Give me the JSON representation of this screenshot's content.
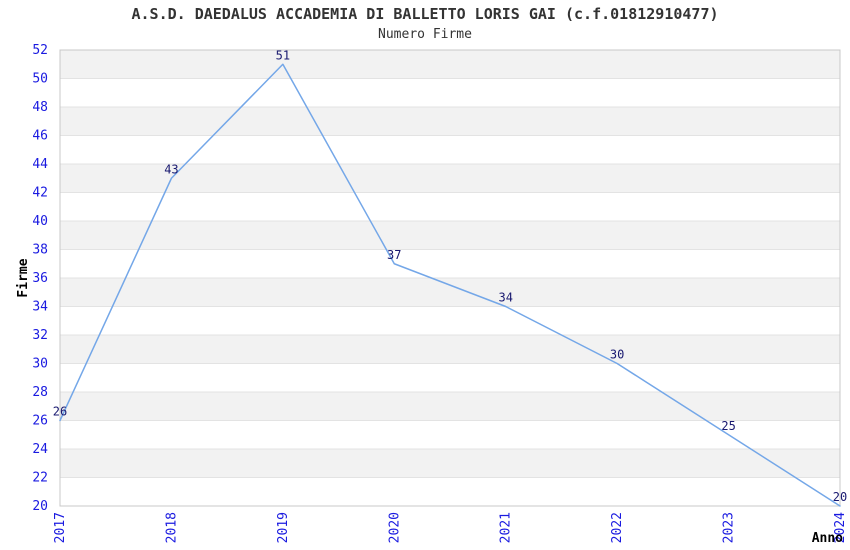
{
  "chart_data": {
    "type": "line",
    "title": "A.S.D. DAEDALUS ACCADEMIA DI BALLETTO LORIS GAI (c.f.01812910477)",
    "subtitle": "Numero Firme",
    "xlabel": "Anno",
    "ylabel": "Firme",
    "categories": [
      "2017",
      "2018",
      "2019",
      "2020",
      "2021",
      "2022",
      "2023",
      "2024"
    ],
    "values": [
      26,
      43,
      51,
      37,
      34,
      30,
      25,
      20
    ],
    "ylim": [
      20,
      52
    ],
    "ytick_step": 2,
    "yticks": [
      20,
      22,
      24,
      26,
      28,
      30,
      32,
      34,
      36,
      38,
      40,
      42,
      44,
      46,
      48,
      50,
      52
    ],
    "legend": "none",
    "grid": "alternating-horizontal-bands",
    "point_labels_visible": true,
    "colors": {
      "line": "#74a7e8",
      "tick_label": "#1a1ae0",
      "point_label": "#191970",
      "band": "#f2f2f2",
      "grid_line": "#e3e3e3",
      "plot_border": "#c8c8c8",
      "title": "#333333",
      "axis_title": "#000000",
      "background": "#ffffff"
    }
  }
}
